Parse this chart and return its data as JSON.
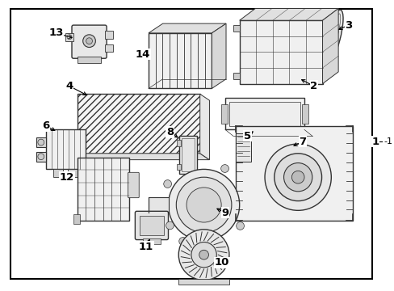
{
  "bg_color": "#ffffff",
  "border_color": "#000000",
  "line_color": "#333333",
  "fig_width": 4.89,
  "fig_height": 3.6,
  "dpi": 100,
  "label_fontsize": 9.5
}
